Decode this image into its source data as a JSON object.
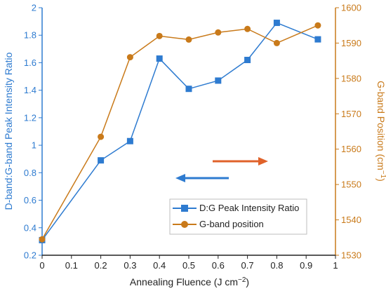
{
  "chart_data": {
    "type": "line",
    "xlabel_prefix": "Annealing Fluence (J cm",
    "xlabel_sup": "−2",
    "xlabel_suffix": ")",
    "ylabel_left": "D-band:G-band Peak Intensity Ratio",
    "ylabel_right_prefix": "G-band Position (cm",
    "ylabel_right_sup": "−1",
    "ylabel_right_suffix": ")",
    "xlim": [
      0,
      1
    ],
    "ylim_left": [
      0.2,
      2
    ],
    "ylim_right": [
      1530,
      1600
    ],
    "x_ticks": [
      "0",
      "0.1",
      "0.2",
      "0.3",
      "0.4",
      "0.5",
      "0.6",
      "0.7",
      "0.8",
      "0.9",
      "1"
    ],
    "y_left_ticks": [
      "0.2",
      "0.4",
      "0.6",
      "0.8",
      "1",
      "1.2",
      "1.4",
      "1.6",
      "1.8",
      "2"
    ],
    "y_right_ticks": [
      "1530",
      "1540",
      "1550",
      "1560",
      "1570",
      "1580",
      "1590",
      "1600"
    ],
    "legend_position": "bottom-right",
    "grid": false,
    "series": [
      {
        "name": "D:G Peak Intensity Ratio",
        "axis": "left",
        "color": "#2e7bd0",
        "marker": "square",
        "x": [
          0,
          0.2,
          0.3,
          0.4,
          0.5,
          0.6,
          0.7,
          0.8,
          0.94
        ],
        "y": [
          0.31,
          0.89,
          1.03,
          1.63,
          1.41,
          1.47,
          1.62,
          1.89,
          1.77
        ]
      },
      {
        "name": "G-band position",
        "axis": "right",
        "color": "#c97a1a",
        "marker": "circle",
        "x": [
          0,
          0.2,
          0.3,
          0.4,
          0.5,
          0.6,
          0.7,
          0.8,
          0.94
        ],
        "y": [
          1534.5,
          1563.5,
          1586,
          1592,
          1591,
          1593,
          1594,
          1590,
          1595
        ]
      }
    ],
    "arrows": [
      {
        "name": "right-axis-arrow",
        "direction": "right",
        "color": "#e0622a"
      },
      {
        "name": "left-axis-arrow",
        "direction": "left",
        "color": "#2e7bd0"
      }
    ]
  }
}
